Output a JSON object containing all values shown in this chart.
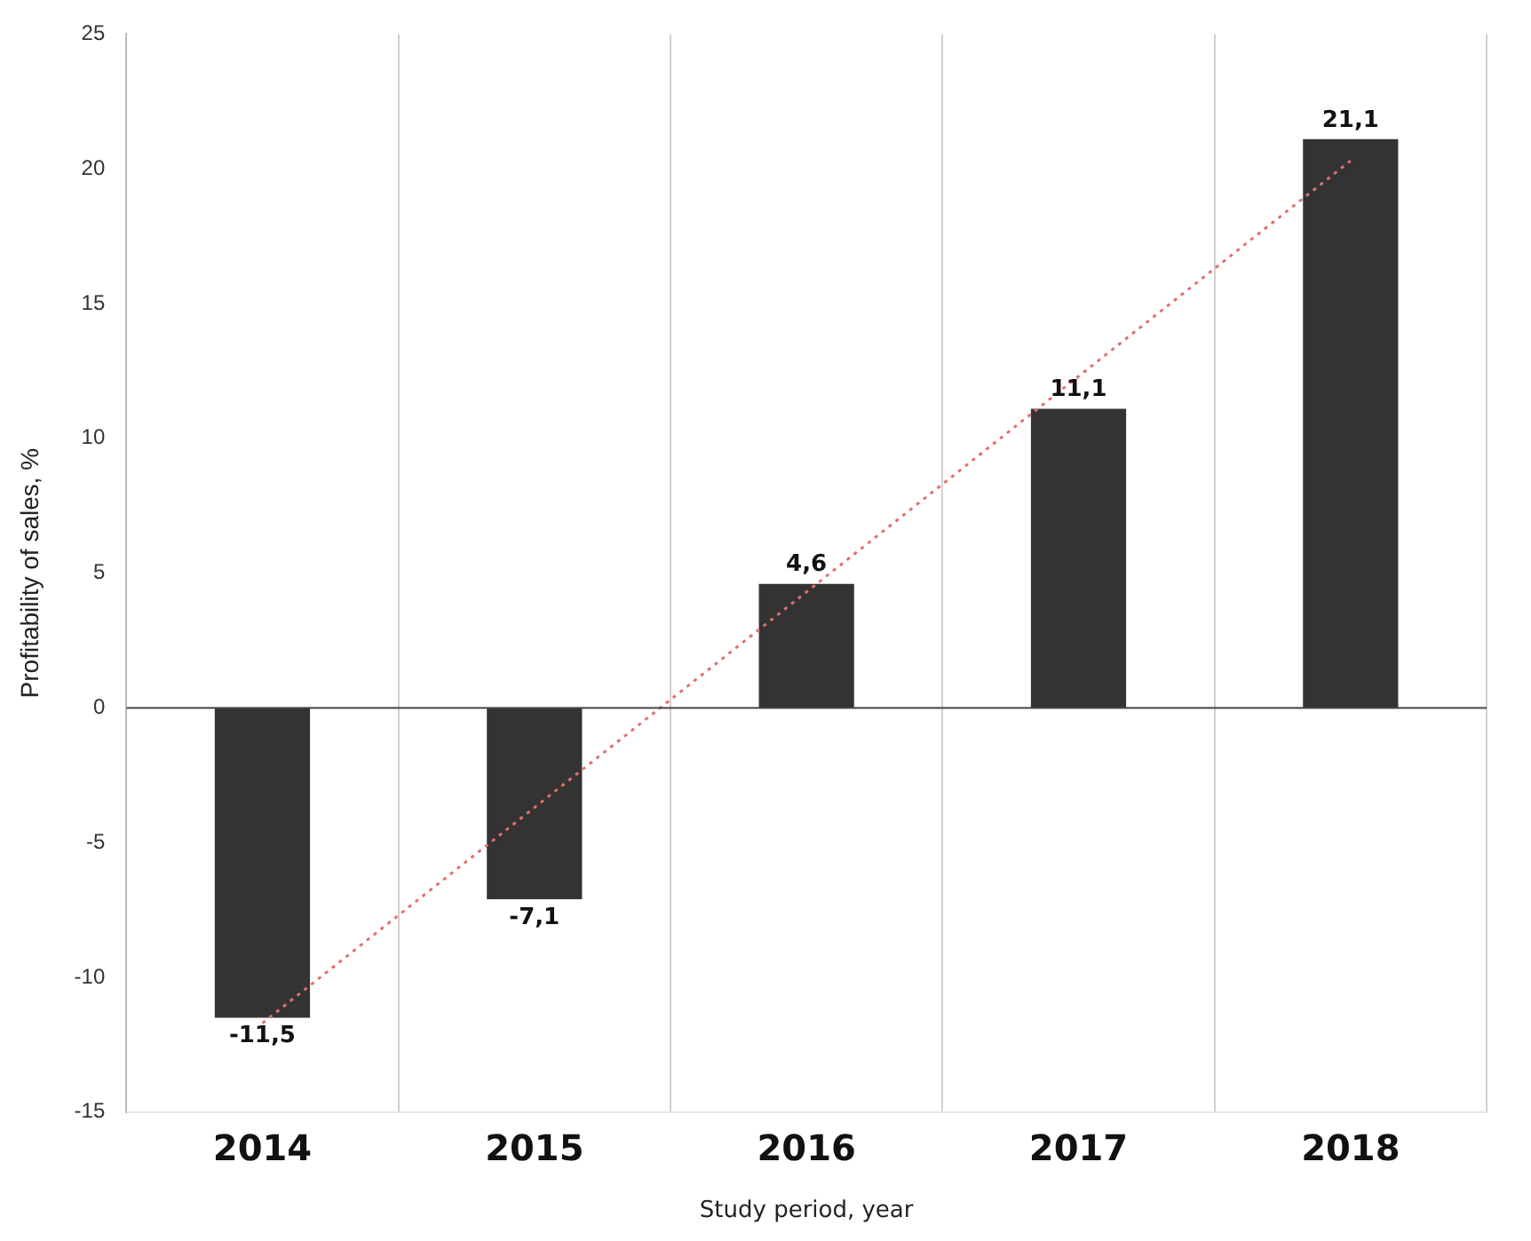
{
  "chart_data": {
    "type": "bar",
    "xlabel": "Study period, year",
    "ylabel": "Profitability of sales, %",
    "categories": [
      "2014",
      "2015",
      "2016",
      "2017",
      "2018"
    ],
    "series": [
      {
        "color": "#333333",
        "values": [
          -11.5,
          -7.1,
          4.6,
          11.1,
          21.1
        ],
        "value_labels": [
          "-11,5",
          "-7,1",
          "4,6",
          "11,1",
          "21,1"
        ]
      },
      {
        "type": "line",
        "color": "#e07070",
        "line_style": "dotted",
        "marker": "none",
        "values": [
          -11.7,
          -3.7,
          4.3,
          12.3,
          20.3
        ]
      }
    ],
    "ylim": [
      -15,
      25
    ],
    "yticks": [
      -15,
      -10,
      -5,
      0,
      5,
      10,
      15,
      20,
      25
    ],
    "grid": "x",
    "legend": false
  }
}
